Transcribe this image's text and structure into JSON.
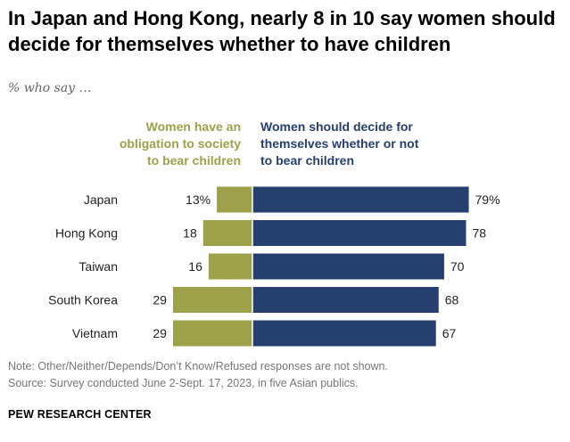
{
  "title": "In Japan and Hong Kong, nearly 8 in 10 say women should decide for themselves whether to have children",
  "subtitle": "% who say …",
  "colors": {
    "obligation": "#9ca14a",
    "decide": "#253f6e"
  },
  "chart_data": {
    "type": "bar",
    "orientation": "horizontal-diverging",
    "categories": [
      "Japan",
      "Hong Kong",
      "Taiwan",
      "South Korea",
      "Vietnam"
    ],
    "series": [
      {
        "name": "Women have an obligation to society to bear children",
        "legend_lines": [
          "Women have an",
          "obligation to society",
          "to bear children"
        ],
        "values": [
          13,
          18,
          16,
          29,
          29
        ],
        "labels": [
          "13%",
          "18",
          "16",
          "29",
          "29"
        ],
        "color": "#9ca14a"
      },
      {
        "name": "Women should decide for themselves whether or not to bear children",
        "legend_lines": [
          "Women should decide for",
          "themselves whether or not",
          "to bear children"
        ],
        "values": [
          79,
          78,
          70,
          68,
          67
        ],
        "labels": [
          "79%",
          "78",
          "70",
          "68",
          "67"
        ],
        "color": "#253f6e"
      }
    ],
    "unit": "%"
  },
  "footer": {
    "note": "Note: Other/Neither/Depends/Don’t Know/Refused responses are not shown.",
    "source": "Source: Survey conducted June 2-Sept. 17, 2023, in five Asian publics.",
    "brand": "PEW RESEARCH CENTER"
  }
}
